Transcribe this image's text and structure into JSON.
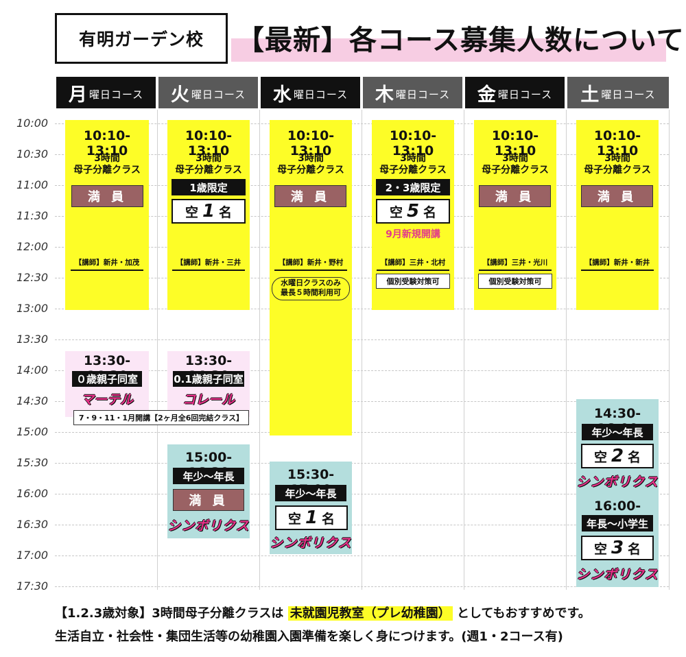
{
  "school_name": "有明ガーデン校",
  "page_title": "【最新】各コース募集人数について",
  "days": [
    {
      "big": "月",
      "small": "曜日コース"
    },
    {
      "big": "火",
      "small": "曜日コース"
    },
    {
      "big": "水",
      "small": "曜日コース"
    },
    {
      "big": "木",
      "small": "曜日コース"
    },
    {
      "big": "金",
      "small": "曜日コース"
    },
    {
      "big": "土",
      "small": "曜日コース"
    }
  ],
  "times": [
    "10:00",
    "10:30",
    "11:00",
    "11:30",
    "12:00",
    "12:30",
    "13:00",
    "13:30",
    "14:00",
    "14:30",
    "15:00",
    "15:30",
    "16:00",
    "16:30",
    "17:00",
    "17:30"
  ],
  "morning": {
    "time": "10:10-13:10",
    "line1": "3時間",
    "line2": "母子分離クラス",
    "full_label": "満 員"
  },
  "mon": {
    "instructor": "【講師】新井・加茂"
  },
  "tue": {
    "limit": "1歳限定",
    "vacancy_pre": "空",
    "vacancy_num": "1",
    "vacancy_post": "名",
    "instructor": "【講師】新井・三井"
  },
  "wed": {
    "instructor": "【講師】新井・野村",
    "note_line1": "水曜日クラスのみ",
    "note_line2": "最長５時間利用可"
  },
  "thu": {
    "limit": "2・3歳限定",
    "vacancy_pre": "空",
    "vacancy_num": "5",
    "vacancy_post": "名",
    "new_open": "9月新規開講",
    "instructor": "【講師】三井・北村",
    "note": "個別受験対策可"
  },
  "fri": {
    "instructor": "【講師】三井・光川",
    "note": "個別受験対策可"
  },
  "sat": {
    "instructor": "【講師】新井・新井"
  },
  "parent_child": {
    "mon_time": "13:30-14:30",
    "mon_tag": "０歳親子同室",
    "mon_logo": "マーテル",
    "tue_time": "13:30-14:30",
    "tue_tag": "0.1歳親子同室",
    "tue_logo": "コレール",
    "period_note": "7・9・11・1月開講【2ヶ月全6回完結クラス】"
  },
  "symbol": {
    "logo": "シンボリクス",
    "tue_time": "15:00-16:30",
    "tue_tag": "年少〜年長",
    "tue_full": "満 員",
    "wed_time": "15:30-17:00",
    "wed_tag": "年少〜年長",
    "wed_vac_pre": "空",
    "wed_vac_num": "1",
    "wed_vac_post": "名",
    "sat1_time": "14:30-16:00",
    "sat1_tag": "年少〜年長",
    "sat1_vac_pre": "空",
    "sat1_vac_num": "2",
    "sat1_vac_post": "名",
    "sat2_time": "16:00-17:30",
    "sat2_tag": "年長〜小学生",
    "sat2_vac_pre": "空",
    "sat2_vac_num": "3",
    "sat2_vac_post": "名"
  },
  "footer": {
    "line1_pre": "【1.2.3歳対象】3時間母子分離クラスは ",
    "line1_hl": "未就園児教室（プレ幼稚園）",
    "line1_post": " としてもおすすめです。",
    "line2": "生活自立・社会性・集団生活等の幼稚園入園準備を楽しく身につけます。(週1・2コース有)"
  },
  "colors": {
    "yellow": "#fdfd27",
    "pink": "#fbe6f6",
    "teal": "#b4dedd",
    "full": "#9a6264",
    "accent": "#e23a8b",
    "title_band": "#f7cde3"
  }
}
